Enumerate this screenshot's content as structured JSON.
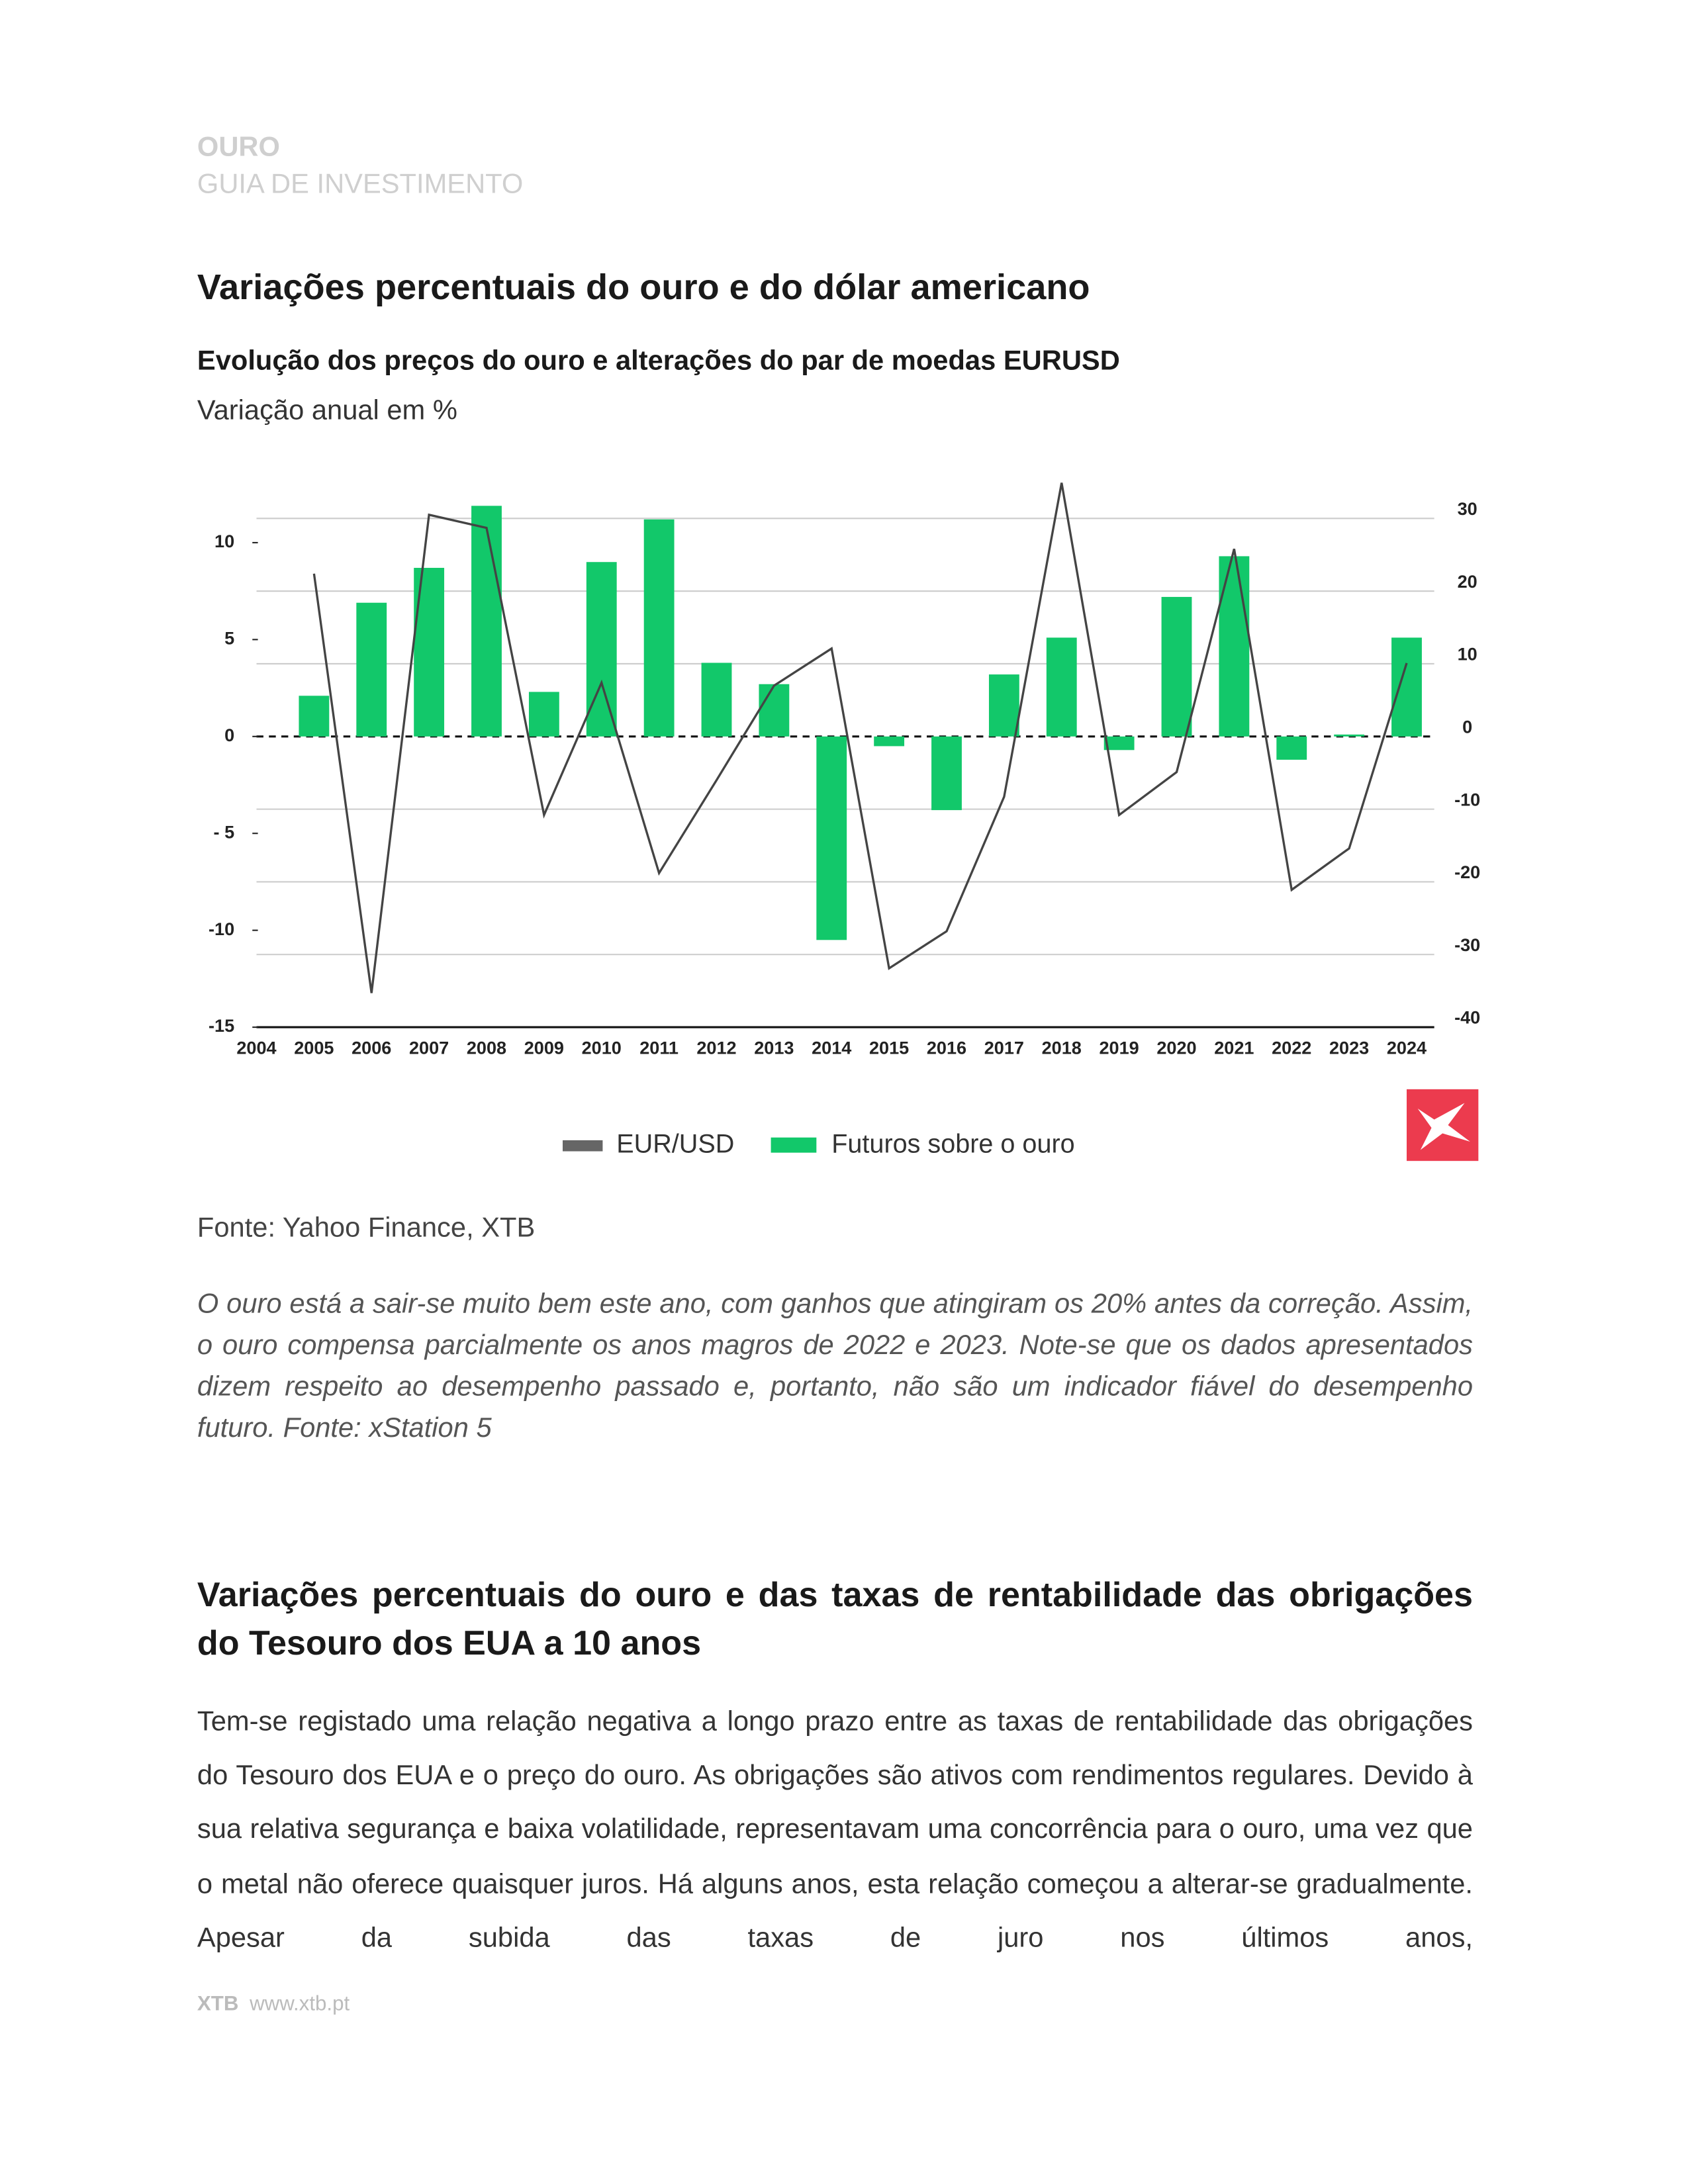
{
  "header": {
    "title": "OURO",
    "subtitle": "GUIA DE INVESTIMENTO"
  },
  "heading": "Variações percentuais do ouro e do dólar americano",
  "chart_data": {
    "type": "bar",
    "title": "Evolução dos preços do ouro e alterações do par de moedas EURUSD",
    "subtitle": "Variação anual em %",
    "categories": [
      "2004",
      "2005",
      "2006",
      "2007",
      "2008",
      "2009",
      "2010",
      "2011",
      "2012",
      "2013",
      "2014",
      "2015",
      "2016",
      "2017",
      "2018",
      "2019",
      "2020",
      "2021",
      "2022",
      "2023",
      "2024"
    ],
    "series": [
      {
        "name": "EUR/USD",
        "type": "line",
        "axis": "y2",
        "color": "#444444",
        "values": [
          null,
          22.4,
          -35.3,
          30.5,
          28.7,
          -10.8,
          7.4,
          -18.8,
          -6,
          7.0,
          12.1,
          -31.9,
          -26.8,
          -8.3,
          34.9,
          -10.8,
          -4.9,
          25.8,
          -21.1,
          -15.4,
          10.1
        ]
      },
      {
        "name": "Futuros sobre o ouro",
        "type": "bar",
        "color": "#12c86a",
        "values": [
          null,
          2.1,
          6.9,
          8.7,
          11.9,
          2.3,
          9.0,
          11.2,
          3.8,
          2.7,
          -10.5,
          -0.5,
          -3.8,
          3.2,
          5.1,
          -0.7,
          7.2,
          9.3,
          -1.2,
          0.1,
          5.1
        ]
      }
    ],
    "ylim": [
      -15,
      11.25
    ],
    "yticks": [
      10,
      5,
      0,
      {
        "value": -5,
        "label": "- 5"
      },
      -10,
      -15
    ],
    "y2lim": [
      -40,
      30
    ],
    "y2ticks": [
      30,
      20,
      10,
      0,
      -10,
      -20,
      -30,
      -40
    ],
    "grid": true
  },
  "source": "Fonte: Yahoo Finance, XTB",
  "caption": "O ouro está a sair-se muito bem este ano, com ganhos que atingiram os 20% antes da correção. Assim, o ouro compensa parcialmente os anos magros de 2022 e 2023. Note-se que os dados apresentados dizem respeito ao desempenho passado e, portanto, não são um indicador fiável do desempenho futuro. Fonte: xStation 5",
  "section_heading": "Variações percentuais do ouro e das taxas de rentabilidade das obrigações do Tesouro dos EUA a 10 anos",
  "paragraph": "Tem-se registado uma relação negativa a longo prazo entre as taxas de rentabilidade das obrigações do Tesouro dos EUA e o preço do ouro. As obrigações são ativos com rendimentos regulares. Devido à sua relativa segurança e baixa volatilidade, representavam uma concorrência para o ouro, uma vez que o metal não oferece quaisquer juros. Há alguns anos, esta relação começou a alterar-se gradualmente. Apesar da subida das taxas de juro nos últimos anos,",
  "footer": {
    "brand": "XTB",
    "url": "www.xtb.pt"
  }
}
